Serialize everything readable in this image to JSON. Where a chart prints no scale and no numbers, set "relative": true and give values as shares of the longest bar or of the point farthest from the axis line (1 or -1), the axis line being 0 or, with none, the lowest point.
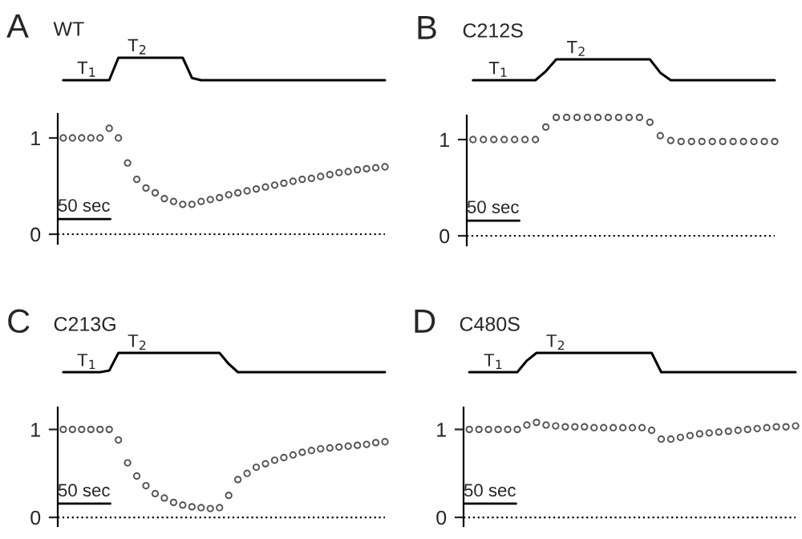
{
  "chart_data": [
    {
      "type": "line",
      "title": "WT",
      "relative": true,
      "annotations": [
        "A",
        "T$_{1}$",
        "T$_{2}$"
      ],
      "categories": [
        null,
        null,
        null,
        null,
        null,
        null,
        null,
        null,
        null,
        null,
        null,
        null,
        null,
        null,
        null,
        null,
        null,
        null,
        null,
        null,
        null,
        null,
        null,
        null,
        null,
        null,
        null,
        null,
        null,
        null,
        null,
        null,
        null,
        null,
        null,
        null
      ],
      "series": [
        {
          "color": "#000000",
          "values": [
            0,
            0,
            0,
            0,
            0,
            0,
            1,
            1,
            1,
            1,
            1,
            1,
            1,
            1,
            0.1,
            0,
            0,
            0,
            0,
            0,
            0,
            0,
            0,
            0,
            0,
            0,
            0,
            0,
            0,
            0,
            0,
            0,
            0,
            0,
            0,
            0
          ]
        }
      ]
    },
    {
      "type": "scatter",
      "annotations": [
        "50 sec"
      ],
      "categories": [
        null,
        null,
        null,
        null,
        null,
        null,
        null,
        null,
        null,
        null,
        null,
        null,
        null,
        null,
        null,
        null,
        null,
        null,
        null,
        null,
        null,
        null,
        null,
        null,
        null,
        null,
        null,
        null,
        null,
        null,
        null,
        null,
        null,
        null,
        null,
        null
      ],
      "ylim": [
        -0.1,
        1.25
      ],
      "yticks": [
        0,
        1
      ],
      "tick_labels": "y",
      "marker": "circle",
      "ref_lines": [
        {
          "axis": "y",
          "value": 0,
          "line_style": "dotted",
          "color": "#000000"
        }
      ],
      "series": [
        {
          "color": "#555555",
          "values": [
            1,
            1,
            1,
            1,
            1,
            1.1,
            1.0,
            0.74,
            0.57,
            0.48,
            0.43,
            0.37,
            0.34,
            0.31,
            0.31,
            0.34,
            0.36,
            0.38,
            0.41,
            0.43,
            0.45,
            0.47,
            0.49,
            0.51,
            0.53,
            0.55,
            0.57,
            0.58,
            0.6,
            0.62,
            0.64,
            0.65,
            0.67,
            0.68,
            0.69,
            0.7
          ]
        }
      ]
    },
    {
      "type": "line",
      "title": "C212S",
      "relative": true,
      "annotations": [
        "B",
        "T$_{1}$",
        "T$_{2}$"
      ],
      "categories": [
        null,
        null,
        null,
        null,
        null,
        null,
        null,
        null,
        null,
        null,
        null,
        null,
        null,
        null,
        null,
        null,
        null,
        null,
        null,
        null,
        null,
        null,
        null,
        null,
        null,
        null,
        null,
        null,
        null,
        null
      ],
      "series": [
        {
          "color": "#000000",
          "values": [
            0,
            0,
            0,
            0,
            0,
            0,
            0,
            0.43,
            1,
            1,
            1,
            1,
            1,
            1,
            1,
            1,
            1,
            1,
            0.36,
            0,
            0,
            0,
            0,
            0,
            0,
            0,
            0,
            0,
            0,
            0
          ]
        }
      ]
    },
    {
      "type": "scatter",
      "annotations": [
        "50 sec"
      ],
      "categories": [
        null,
        null,
        null,
        null,
        null,
        null,
        null,
        null,
        null,
        null,
        null,
        null,
        null,
        null,
        null,
        null,
        null,
        null,
        null,
        null,
        null,
        null,
        null,
        null,
        null,
        null,
        null,
        null,
        null,
        null
      ],
      "ylim": [
        -0.1,
        1.25
      ],
      "yticks": [
        0,
        1
      ],
      "tick_labels": "y",
      "marker": "circle",
      "ref_lines": [
        {
          "axis": "y",
          "value": 0,
          "line_style": "dotted",
          "color": "#000000"
        }
      ],
      "series": [
        {
          "color": "#555555",
          "values": [
            1,
            1,
            1,
            1,
            1,
            1,
            1,
            1.13,
            1.23,
            1.23,
            1.23,
            1.23,
            1.23,
            1.23,
            1.23,
            1.23,
            1.23,
            1.18,
            1.04,
            0.99,
            0.98,
            0.98,
            0.98,
            0.98,
            0.98,
            0.98,
            0.98,
            0.98,
            0.98,
            0.98
          ]
        }
      ]
    },
    {
      "type": "line",
      "title": "C213G",
      "relative": true,
      "annotations": [
        "C",
        "T$_{1}$",
        "T$_{2}$"
      ],
      "categories": [
        null,
        null,
        null,
        null,
        null,
        null,
        null,
        null,
        null,
        null,
        null,
        null,
        null,
        null,
        null,
        null,
        null,
        null,
        null,
        null,
        null,
        null,
        null,
        null,
        null,
        null,
        null,
        null,
        null,
        null,
        null,
        null,
        null,
        null,
        null,
        null
      ],
      "series": [
        {
          "color": "#000000",
          "values": [
            0,
            0,
            0,
            0,
            0,
            0.08,
            1,
            1,
            1,
            1,
            1,
            1,
            1,
            1,
            1,
            1,
            1,
            1,
            0.43,
            0,
            0,
            0,
            0,
            0,
            0,
            0,
            0,
            0,
            0,
            0,
            0,
            0,
            0,
            0,
            0,
            0
          ]
        }
      ]
    },
    {
      "type": "scatter",
      "annotations": [
        "50 sec"
      ],
      "categories": [
        null,
        null,
        null,
        null,
        null,
        null,
        null,
        null,
        null,
        null,
        null,
        null,
        null,
        null,
        null,
        null,
        null,
        null,
        null,
        null,
        null,
        null,
        null,
        null,
        null,
        null,
        null,
        null,
        null,
        null,
        null,
        null,
        null,
        null,
        null,
        null
      ],
      "ylim": [
        -0.1,
        1.25
      ],
      "yticks": [
        0,
        1
      ],
      "tick_labels": "y",
      "marker": "circle",
      "ref_lines": [
        {
          "axis": "y",
          "value": 0,
          "line_style": "dotted",
          "color": "#000000"
        }
      ],
      "series": [
        {
          "color": "#555555",
          "values": [
            1,
            1,
            1,
            1,
            1,
            1,
            0.88,
            0.62,
            0.47,
            0.36,
            0.27,
            0.22,
            0.17,
            0.14,
            0.12,
            0.11,
            0.1,
            0.11,
            0.25,
            0.43,
            0.5,
            0.57,
            0.61,
            0.65,
            0.68,
            0.71,
            0.74,
            0.76,
            0.78,
            0.79,
            0.8,
            0.81,
            0.82,
            0.83,
            0.85,
            0.86
          ]
        }
      ]
    },
    {
      "type": "line",
      "title": "C480S",
      "relative": true,
      "annotations": [
        "D",
        "T$_{1}$",
        "T$_{2}$"
      ],
      "categories": [
        null,
        null,
        null,
        null,
        null,
        null,
        null,
        null,
        null,
        null,
        null,
        null,
        null,
        null,
        null,
        null,
        null,
        null,
        null,
        null,
        null,
        null,
        null,
        null,
        null,
        null,
        null,
        null,
        null,
        null,
        null,
        null,
        null,
        null,
        null
      ],
      "series": [
        {
          "color": "#000000",
          "values": [
            0,
            0,
            0,
            0,
            0,
            0,
            0.6,
            1,
            1,
            1,
            1,
            1,
            1,
            1,
            1,
            1,
            1,
            1,
            1,
            1,
            0,
            0,
            0,
            0,
            0,
            0,
            0,
            0,
            0,
            0,
            0,
            0,
            0,
            0,
            0
          ]
        }
      ]
    },
    {
      "type": "scatter",
      "annotations": [
        "50 sec"
      ],
      "categories": [
        null,
        null,
        null,
        null,
        null,
        null,
        null,
        null,
        null,
        null,
        null,
        null,
        null,
        null,
        null,
        null,
        null,
        null,
        null,
        null,
        null,
        null,
        null,
        null,
        null,
        null,
        null,
        null,
        null,
        null,
        null,
        null,
        null,
        null,
        null
      ],
      "ylim": [
        -0.1,
        1.25
      ],
      "yticks": [
        0,
        1
      ],
      "tick_labels": "y",
      "marker": "circle",
      "ref_lines": [
        {
          "axis": "y",
          "value": 0,
          "line_style": "dotted",
          "color": "#000000"
        }
      ],
      "series": [
        {
          "color": "#555555",
          "values": [
            1,
            1,
            1,
            1,
            1,
            1,
            1.05,
            1.08,
            1.05,
            1.04,
            1.03,
            1.03,
            1.03,
            1.02,
            1.02,
            1.02,
            1.02,
            1.02,
            1.02,
            0.99,
            0.89,
            0.89,
            0.91,
            0.93,
            0.95,
            0.96,
            0.97,
            0.98,
            0.99,
            1.0,
            1.01,
            1.02,
            1.03,
            1.03,
            1.04
          ]
        }
      ]
    }
  ]
}
